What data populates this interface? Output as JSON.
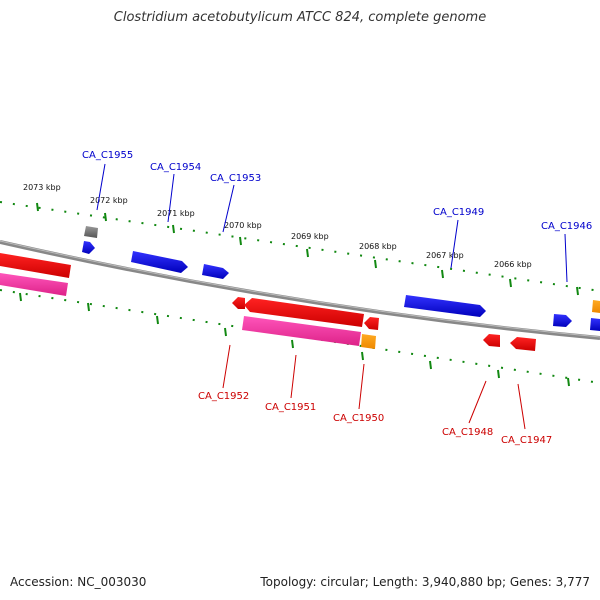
{
  "title": "Clostridium acetobutylicum ATCC 824, complete genome",
  "footer": {
    "accession": "Accession: NC_003030",
    "summary": "Topology: circular; Length: 3,940,880 bp; Genes: 3,777"
  },
  "colors": {
    "forward_gene": "#0000ee",
    "reverse_gene": "#ee0000",
    "reverse_cds": "#ee2a9a",
    "orange_feature": "#ff9900",
    "gray_feature": "#777777",
    "backbone": "#888888",
    "tick": "#118811"
  },
  "kbp_labels": [
    "2073 kbp",
    "2072 kbp",
    "2071 kbp",
    "2070 kbp",
    "2069 kbp",
    "2068 kbp",
    "2067 kbp",
    "2066 kbp"
  ],
  "forward_genes": [
    {
      "name": "CA_C1955"
    },
    {
      "name": "CA_C1954"
    },
    {
      "name": "CA_C1953"
    },
    {
      "name": "CA_C1949"
    },
    {
      "name": "CA_C1946"
    }
  ],
  "reverse_genes": [
    {
      "name": "CA_C1952"
    },
    {
      "name": "CA_C1951"
    },
    {
      "name": "CA_C1950"
    },
    {
      "name": "CA_C1948"
    },
    {
      "name": "CA_C1947"
    }
  ]
}
